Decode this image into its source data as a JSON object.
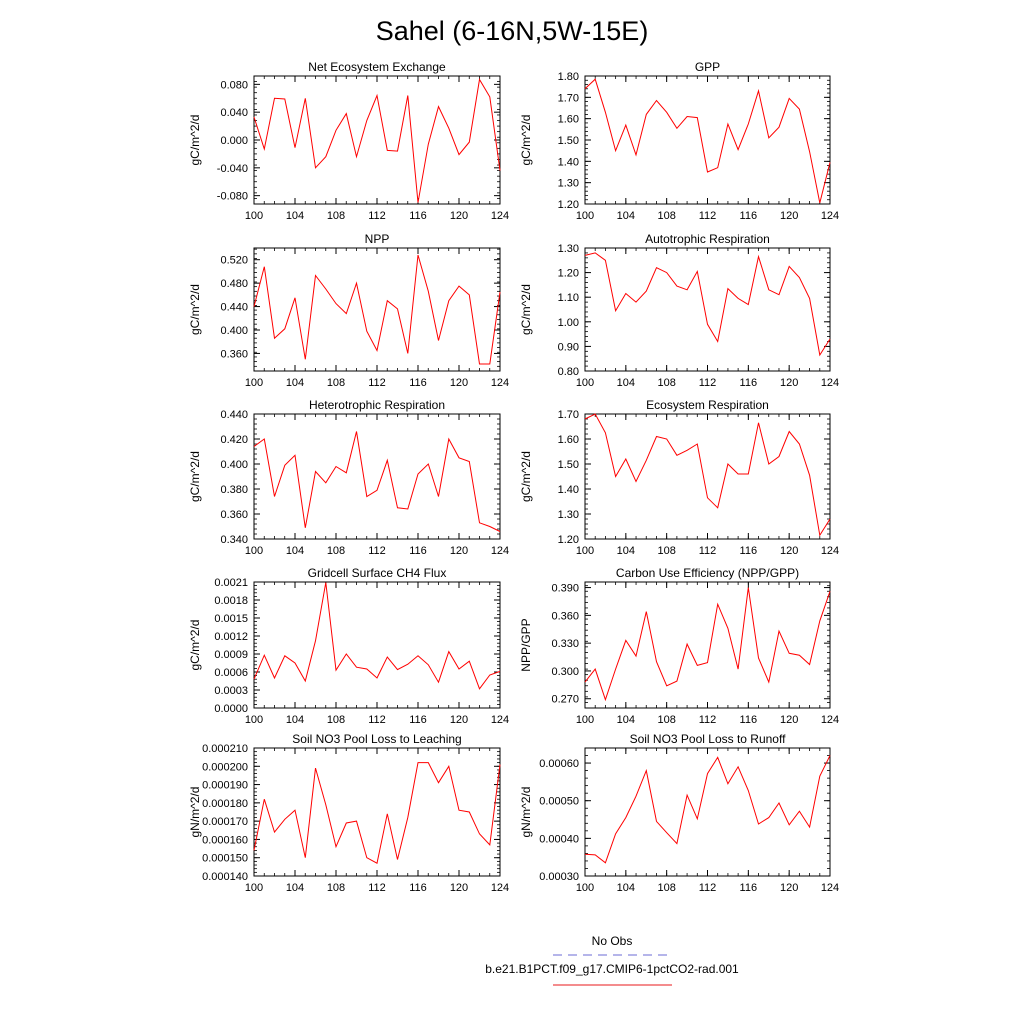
{
  "figure": {
    "title": "Sahel (6-16N,5W-15E)"
  },
  "legend": {
    "entries": [
      {
        "label": "No Obs",
        "color": "#6b6bd6",
        "dash": "dashed"
      },
      {
        "label": "b.e21.B1PCT.f09_g17.CMIP6-1pctCO2-rad.001",
        "color": "#e8191b",
        "dash": "solid"
      }
    ]
  },
  "colors": {
    "series": "#ff0000",
    "axis": "#000000"
  },
  "chart_data": [
    {
      "type": "line",
      "title": "Net Ecosystem Exchange",
      "ylabel": "gC/m^2/d",
      "xlabel": "",
      "xlim": [
        100,
        124
      ],
      "ylim": [
        -0.092,
        0.092
      ],
      "xticks": [
        100,
        104,
        108,
        112,
        116,
        120,
        124
      ],
      "yticks": [
        -0.08,
        -0.04,
        0.0,
        0.04,
        0.08
      ],
      "yticklabels": [
        "-0.080",
        "-0.040",
        "0.000",
        "0.040",
        "0.080"
      ],
      "series": [
        {
          "values": [
            0.033,
            -0.013,
            0.06,
            0.059,
            -0.011,
            0.06,
            -0.04,
            -0.024,
            0.014,
            0.038,
            -0.024,
            0.028,
            0.064,
            -0.015,
            -0.016,
            0.064,
            -0.09,
            -0.006,
            0.048,
            0.017,
            -0.021,
            -0.003,
            0.087,
            0.062,
            -0.044
          ]
        }
      ]
    },
    {
      "type": "line",
      "title": "GPP",
      "ylabel": "gC/m^2/d",
      "xlabel": "",
      "xlim": [
        100,
        124
      ],
      "ylim": [
        1.2,
        1.8
      ],
      "xticks": [
        100,
        104,
        108,
        112,
        116,
        120,
        124
      ],
      "yticks": [
        1.2,
        1.3,
        1.4,
        1.5,
        1.6,
        1.7,
        1.8
      ],
      "yticklabels": [
        "1.20",
        "1.30",
        "1.40",
        "1.50",
        "1.60",
        "1.70",
        "1.80"
      ],
      "series": [
        {
          "values": [
            1.74,
            1.785,
            1.63,
            1.45,
            1.57,
            1.43,
            1.62,
            1.685,
            1.63,
            1.555,
            1.61,
            1.605,
            1.35,
            1.37,
            1.575,
            1.455,
            1.575,
            1.73,
            1.51,
            1.56,
            1.695,
            1.645,
            1.445,
            1.205,
            1.395
          ]
        }
      ]
    },
    {
      "type": "line",
      "title": "NPP",
      "ylabel": "gC/m^2/d",
      "xlabel": "",
      "xlim": [
        100,
        124
      ],
      "ylim": [
        0.33,
        0.54
      ],
      "xticks": [
        100,
        104,
        108,
        112,
        116,
        120,
        124
      ],
      "yticks": [
        0.36,
        0.4,
        0.44,
        0.48,
        0.52
      ],
      "yticklabels": [
        "0.360",
        "0.400",
        "0.440",
        "0.480",
        "0.520"
      ],
      "series": [
        {
          "values": [
            0.44,
            0.508,
            0.386,
            0.402,
            0.455,
            0.35,
            0.493,
            0.47,
            0.445,
            0.428,
            0.48,
            0.398,
            0.365,
            0.45,
            0.436,
            0.36,
            0.528,
            0.466,
            0.382,
            0.45,
            0.475,
            0.46,
            0.342,
            0.342,
            0.465
          ]
        }
      ]
    },
    {
      "type": "line",
      "title": "Autotrophic Respiration",
      "ylabel": "gC/m^2/d",
      "xlabel": "",
      "xlim": [
        100,
        124
      ],
      "ylim": [
        0.8,
        1.3
      ],
      "xticks": [
        100,
        104,
        108,
        112,
        116,
        120,
        124
      ],
      "yticks": [
        0.8,
        0.9,
        1.0,
        1.1,
        1.2,
        1.3
      ],
      "yticklabels": [
        "0.80",
        "0.90",
        "1.00",
        "1.10",
        "1.20",
        "1.30"
      ],
      "series": [
        {
          "values": [
            1.27,
            1.28,
            1.25,
            1.045,
            1.115,
            1.08,
            1.125,
            1.22,
            1.2,
            1.145,
            1.13,
            1.205,
            0.99,
            0.92,
            1.135,
            1.095,
            1.07,
            1.265,
            1.13,
            1.11,
            1.225,
            1.18,
            1.095,
            0.865,
            0.93
          ]
        }
      ]
    },
    {
      "type": "line",
      "title": "Heterotrophic Respiration",
      "ylabel": "gC/m^2/d",
      "xlabel": "",
      "xlim": [
        100,
        124
      ],
      "ylim": [
        0.34,
        0.44
      ],
      "xticks": [
        100,
        104,
        108,
        112,
        116,
        120,
        124
      ],
      "yticks": [
        0.34,
        0.36,
        0.38,
        0.4,
        0.42,
        0.44
      ],
      "yticklabels": [
        "0.340",
        "0.360",
        "0.380",
        "0.400",
        "0.420",
        "0.440"
      ],
      "series": [
        {
          "values": [
            0.414,
            0.42,
            0.374,
            0.399,
            0.407,
            0.349,
            0.394,
            0.385,
            0.398,
            0.393,
            0.426,
            0.374,
            0.379,
            0.403,
            0.365,
            0.364,
            0.392,
            0.4,
            0.374,
            0.42,
            0.405,
            0.402,
            0.353,
            0.35,
            0.346
          ]
        }
      ]
    },
    {
      "type": "line",
      "title": "Ecosystem Respiration",
      "ylabel": "gC/m^2/d",
      "xlabel": "",
      "xlim": [
        100,
        124
      ],
      "ylim": [
        1.2,
        1.7
      ],
      "xticks": [
        100,
        104,
        108,
        112,
        116,
        120,
        124
      ],
      "yticks": [
        1.2,
        1.3,
        1.4,
        1.5,
        1.6,
        1.7
      ],
      "yticklabels": [
        "1.20",
        "1.30",
        "1.40",
        "1.50",
        "1.60",
        "1.70"
      ],
      "series": [
        {
          "values": [
            1.68,
            1.7,
            1.625,
            1.45,
            1.52,
            1.43,
            1.515,
            1.61,
            1.6,
            1.535,
            1.555,
            1.58,
            1.365,
            1.325,
            1.5,
            1.46,
            1.46,
            1.665,
            1.5,
            1.53,
            1.63,
            1.58,
            1.455,
            1.215,
            1.28
          ]
        }
      ]
    },
    {
      "type": "line",
      "title": "Gridcell Surface CH4 Flux",
      "ylabel": "gC/m^2/d",
      "xlabel": "",
      "xlim": [
        100,
        124
      ],
      "ylim": [
        0,
        0.0021
      ],
      "xticks": [
        100,
        104,
        108,
        112,
        116,
        120,
        124
      ],
      "yticks": [
        0,
        0.0003,
        0.0006,
        0.0009,
        0.0012,
        0.0015,
        0.0018,
        0.0021
      ],
      "yticklabels": [
        "0.0000",
        "0.0003",
        "0.0006",
        "0.0009",
        "0.0012",
        "0.0015",
        "0.0018",
        "0.0021"
      ],
      "series": [
        {
          "values": [
            0.00048,
            0.00088,
            0.0005,
            0.00087,
            0.00075,
            0.00045,
            0.00112,
            0.00209,
            0.00063,
            0.0009,
            0.00068,
            0.00065,
            0.0005,
            0.00085,
            0.00064,
            0.00073,
            0.00087,
            0.00072,
            0.00043,
            0.00094,
            0.00065,
            0.00078,
            0.00032,
            0.00055,
            0.00061
          ]
        }
      ]
    },
    {
      "type": "line",
      "title": "Carbon Use Efficiency (NPP/GPP)",
      "ylabel": "NPP/GPP",
      "xlabel": "",
      "xlim": [
        100,
        124
      ],
      "ylim": [
        0.26,
        0.396
      ],
      "xticks": [
        100,
        104,
        108,
        112,
        116,
        120,
        124
      ],
      "yticks": [
        0.27,
        0.3,
        0.33,
        0.36,
        0.39
      ],
      "yticklabels": [
        "0.270",
        "0.300",
        "0.330",
        "0.360",
        "0.390"
      ],
      "series": [
        {
          "values": [
            0.288,
            0.302,
            0.269,
            0.302,
            0.333,
            0.316,
            0.364,
            0.31,
            0.284,
            0.289,
            0.329,
            0.306,
            0.309,
            0.372,
            0.346,
            0.302,
            0.39,
            0.314,
            0.288,
            0.343,
            0.319,
            0.317,
            0.307,
            0.354,
            0.386
          ]
        }
      ]
    },
    {
      "type": "line",
      "title": "Soil NO3 Pool Loss to Leaching",
      "ylabel": "gN/m^2/d",
      "xlabel": "",
      "xlim": [
        100,
        124
      ],
      "ylim": [
        0.00014,
        0.00021
      ],
      "xticks": [
        100,
        104,
        108,
        112,
        116,
        120,
        124
      ],
      "yticks": [
        0.00014,
        0.00015,
        0.00016,
        0.00017,
        0.00018,
        0.00019,
        0.0002,
        0.00021
      ],
      "yticklabels": [
        "0.000140",
        "0.000150",
        "0.000160",
        "0.000170",
        "0.000180",
        "0.000190",
        "0.000200",
        "0.000210"
      ],
      "series": [
        {
          "values": [
            0.000154,
            0.000182,
            0.000164,
            0.000171,
            0.000176,
            0.00015,
            0.000199,
            0.000179,
            0.000156,
            0.000169,
            0.00017,
            0.00015,
            0.000147,
            0.000174,
            0.000149,
            0.000172,
            0.000202,
            0.000202,
            0.000191,
            0.0002,
            0.000176,
            0.000175,
            0.000163,
            0.000157,
            0.000201
          ]
        }
      ]
    },
    {
      "type": "line",
      "title": "Soil NO3 Pool Loss to Runoff",
      "ylabel": "gN/m^2/d",
      "xlabel": "",
      "xlim": [
        100,
        124
      ],
      "ylim": [
        0.0003,
        0.00064
      ],
      "xticks": [
        100,
        104,
        108,
        112,
        116,
        120,
        124
      ],
      "yticks": [
        0.0003,
        0.0004,
        0.0005,
        0.0006
      ],
      "yticklabels": [
        "0.00030",
        "0.00040",
        "0.00050",
        "0.00060"
      ],
      "series": [
        {
          "values": [
            0.000358,
            0.000356,
            0.000335,
            0.000412,
            0.000455,
            0.000512,
            0.00058,
            0.000445,
            0.000415,
            0.000386,
            0.000515,
            0.000452,
            0.000572,
            0.000615,
            0.000545,
            0.00059,
            0.000527,
            0.000438,
            0.000455,
            0.000494,
            0.000436,
            0.000472,
            0.00043,
            0.000565,
            0.00062
          ]
        }
      ]
    }
  ]
}
